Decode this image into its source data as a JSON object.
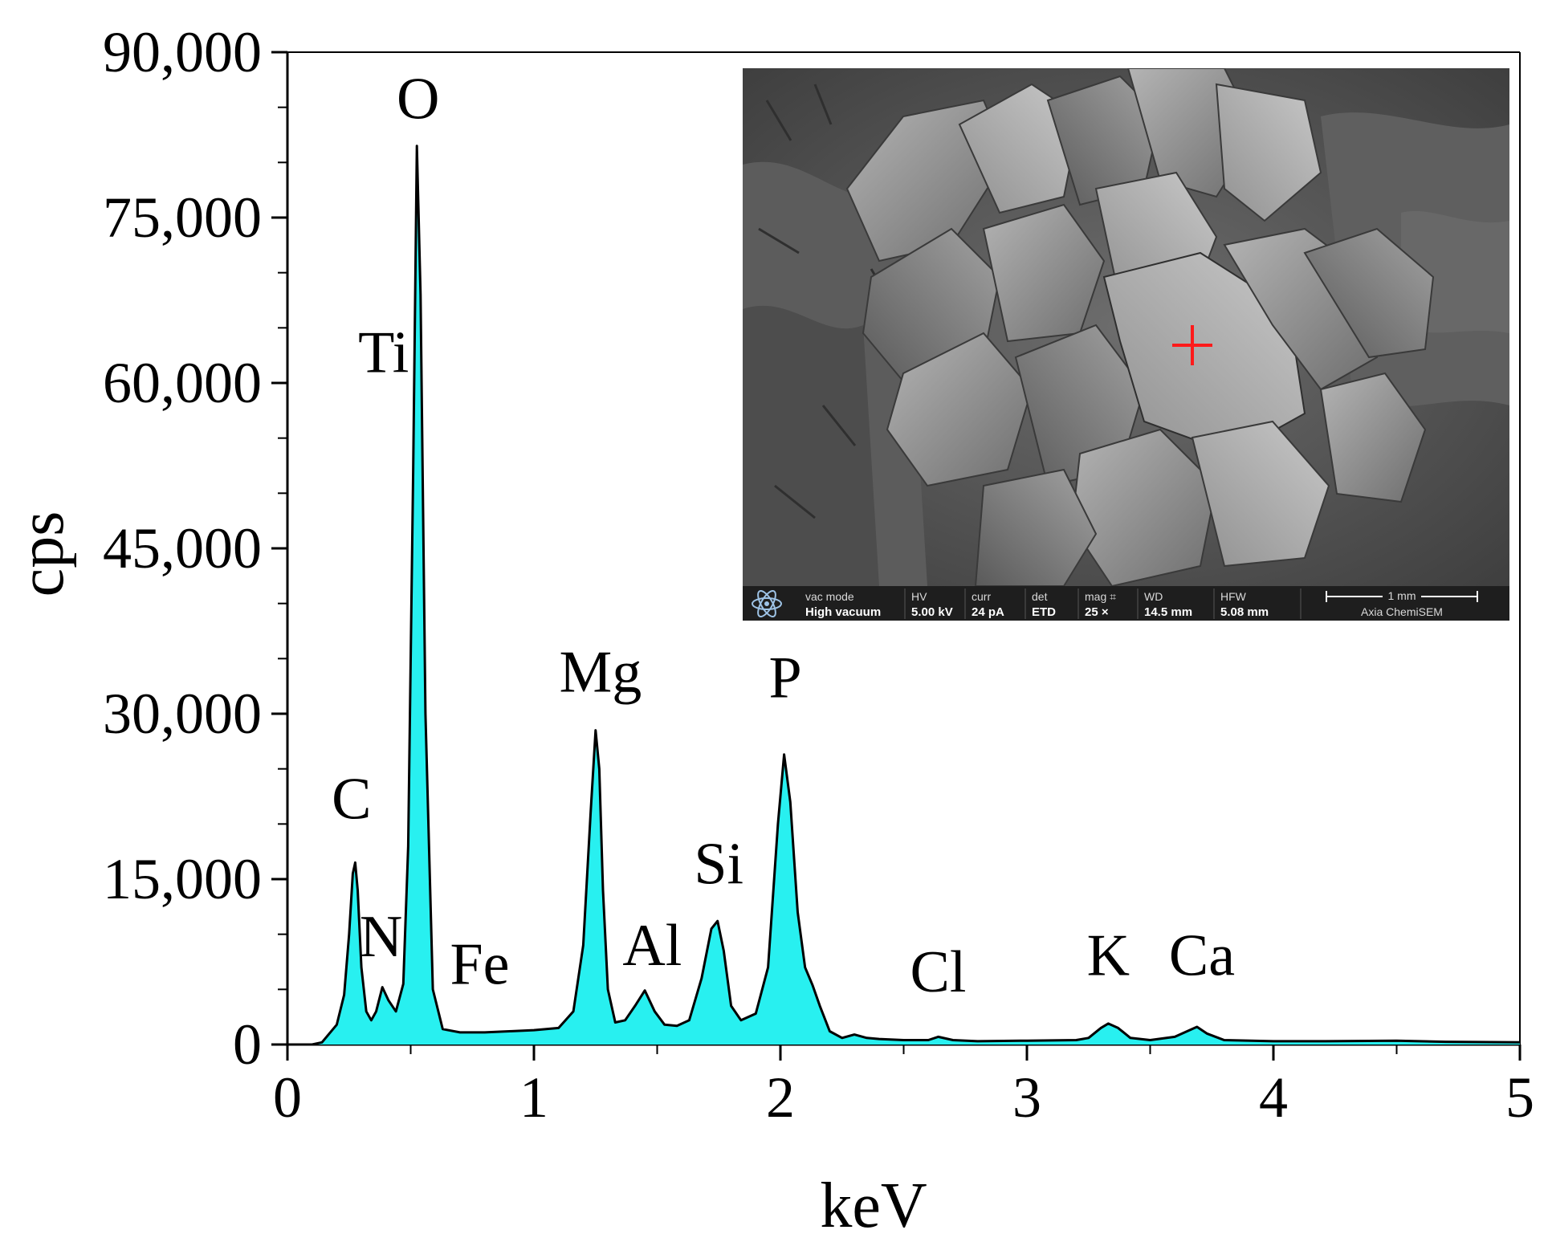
{
  "chart_data": {
    "type": "area",
    "title": "",
    "xlabel": "keV",
    "ylabel": "cps",
    "xlim": [
      0,
      5
    ],
    "ylim": [
      0,
      90000
    ],
    "xticks": [
      0,
      1,
      2,
      3,
      4,
      5
    ],
    "xtick_labels": [
      "0",
      "1",
      "2",
      "3",
      "4",
      "5"
    ],
    "yticks": [
      0,
      15000,
      30000,
      45000,
      60000,
      75000,
      90000
    ],
    "ytick_labels": [
      "0",
      "15,000",
      "30,000",
      "45,000",
      "60,000",
      "75,000",
      "90,000"
    ],
    "grid": false,
    "fill_color": "#28f0f0",
    "line_color": "#000000",
    "series": [
      {
        "x": [
          0,
          0.1,
          0.14,
          0.2,
          0.23,
          0.25,
          0.265,
          0.275,
          0.285,
          0.3,
          0.32,
          0.34,
          0.36,
          0.385,
          0.41,
          0.44,
          0.47,
          0.49,
          0.51,
          0.525,
          0.54,
          0.56,
          0.59,
          0.63,
          0.7,
          0.8,
          0.9,
          1.0,
          1.1,
          1.16,
          1.2,
          1.23,
          1.25,
          1.265,
          1.28,
          1.3,
          1.33,
          1.37,
          1.41,
          1.45,
          1.49,
          1.53,
          1.58,
          1.63,
          1.68,
          1.72,
          1.745,
          1.77,
          1.8,
          1.84,
          1.9,
          1.95,
          1.99,
          2.015,
          2.04,
          2.07,
          2.1,
          2.13,
          2.16,
          2.2,
          2.25,
          2.3,
          2.35,
          2.4,
          2.5,
          2.6,
          2.64,
          2.7,
          2.8,
          3.0,
          3.2,
          3.25,
          3.3,
          3.33,
          3.37,
          3.42,
          3.5,
          3.6,
          3.66,
          3.69,
          3.73,
          3.8,
          4.0,
          4.2,
          4.5,
          4.7,
          5.0
        ],
        "y": [
          0,
          0,
          200,
          1800,
          4500,
          10000,
          15500,
          16500,
          14000,
          7000,
          3000,
          2200,
          3000,
          5200,
          4000,
          3000,
          5500,
          18000,
          52000,
          81500,
          68000,
          30000,
          5000,
          1400,
          1100,
          1100,
          1200,
          1300,
          1500,
          3000,
          9000,
          21000,
          28500,
          25000,
          14000,
          5000,
          2000,
          2200,
          3500,
          4900,
          3000,
          1800,
          1700,
          2200,
          6000,
          10500,
          11200,
          8500,
          3500,
          2200,
          2800,
          7000,
          20000,
          26300,
          22000,
          12000,
          7000,
          5400,
          3500,
          1200,
          600,
          900,
          600,
          500,
          400,
          400,
          700,
          400,
          300,
          350,
          400,
          600,
          1500,
          1900,
          1500,
          600,
          400,
          700,
          1300,
          1600,
          1000,
          400,
          300,
          300,
          350,
          250,
          200
        ]
      }
    ],
    "annotations": [
      {
        "text": "O",
        "x": 0.53,
        "y": 84000
      },
      {
        "text": "Ti",
        "x": 0.39,
        "y": 61000
      },
      {
        "text": "C",
        "x": 0.26,
        "y": 20500
      },
      {
        "text": "N",
        "x": 0.38,
        "y": 8000
      },
      {
        "text": "Fe",
        "x": 0.78,
        "y": 5500
      },
      {
        "text": "Mg",
        "x": 1.27,
        "y": 32000
      },
      {
        "text": "Al",
        "x": 1.48,
        "y": 7200
      },
      {
        "text": "Si",
        "x": 1.75,
        "y": 14600
      },
      {
        "text": "P",
        "x": 2.02,
        "y": 31500
      },
      {
        "text": "Cl",
        "x": 2.64,
        "y": 4800
      },
      {
        "text": "K",
        "x": 3.33,
        "y": 6300
      },
      {
        "text": "Ca",
        "x": 3.71,
        "y": 6300
      }
    ]
  },
  "inset": {
    "fields": [
      {
        "label": "vac mode",
        "value": "High vacuum"
      },
      {
        "label": "HV",
        "value": "5.00 kV"
      },
      {
        "label": "curr",
        "value": "24 pA"
      },
      {
        "label": "det",
        "value": "ETD"
      },
      {
        "label": "mag ⌗",
        "value": "25 ×"
      },
      {
        "label": "WD",
        "value": "14.5 mm"
      },
      {
        "label": "HFW",
        "value": "5.08 mm"
      }
    ],
    "scale_label": "1 mm",
    "instrument": "Axia ChemiSEM"
  }
}
